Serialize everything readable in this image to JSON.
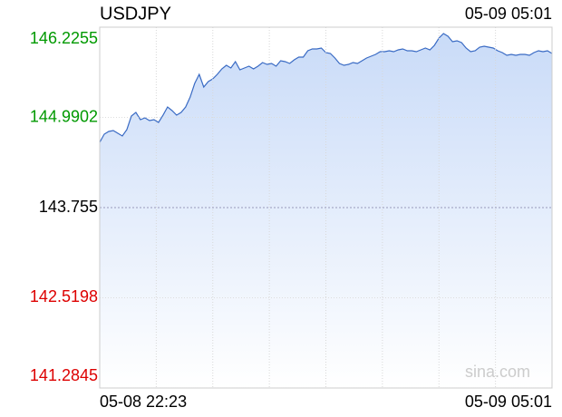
{
  "chart_data": {
    "type": "line",
    "title": "USDJPY",
    "time": "05-09 05:01",
    "watermark": "sina.com",
    "categories": [
      "05-08 22:23",
      null,
      null,
      null,
      null,
      null,
      null,
      null,
      null,
      null,
      null,
      null,
      null,
      null,
      null,
      null,
      null,
      null,
      null,
      null,
      null,
      null,
      null,
      null,
      null,
      null,
      null,
      null,
      null,
      null,
      null,
      null,
      null,
      null,
      null,
      null,
      null,
      null,
      null,
      null,
      null,
      null,
      null,
      null,
      null,
      null,
      null,
      null,
      null,
      null,
      null,
      null,
      null,
      null,
      null,
      null,
      null,
      null,
      null,
      null,
      null,
      null,
      null,
      null,
      null,
      null,
      null,
      null,
      null,
      null,
      null,
      null,
      null,
      null,
      null,
      null,
      null,
      null,
      null,
      null,
      null,
      null,
      null,
      null,
      null,
      null,
      null,
      null,
      null,
      null,
      null,
      null,
      null,
      null,
      null,
      null,
      null,
      null,
      null,
      null,
      "05-09 05:01"
    ],
    "series": [
      {
        "name": "USDJPY",
        "color": "#3a6bc4",
        "values": [
          144.6488,
          144.7605,
          144.7978,
          144.8102,
          144.7729,
          144.7357,
          144.8226,
          145.0088,
          145.0585,
          144.9592,
          144.984,
          144.9468,
          144.9592,
          144.9219,
          145.0212,
          145.133,
          145.0833,
          145.0212,
          145.0585,
          145.133,
          145.2695,
          145.4558,
          145.5799,
          145.4061,
          145.4806,
          145.5178,
          145.5799,
          145.6544,
          145.7041,
          145.6668,
          145.7537,
          145.642,
          145.6668,
          145.6917,
          145.6544,
          145.6917,
          145.7413,
          145.7165,
          145.7289,
          145.6917,
          145.7661,
          145.7537,
          145.7289,
          145.7786,
          145.8158,
          145.8158,
          145.9027,
          145.9275,
          145.9275,
          145.94,
          145.8779,
          145.8655,
          145.8034,
          145.7289,
          145.7041,
          145.7165,
          145.7413,
          145.7289,
          145.7661,
          145.8034,
          145.8282,
          145.853,
          145.8903,
          145.8903,
          145.9027,
          145.8903,
          145.9151,
          145.9275,
          145.9027,
          145.9027,
          145.8903,
          145.9151,
          145.94,
          145.9151,
          145.9772,
          146.0765,
          146.1386,
          146.1013,
          146.0269,
          146.0393,
          146.0144,
          145.94,
          145.8903,
          145.9027,
          145.9524,
          145.9648,
          145.9524,
          145.94,
          145.9027,
          145.8779,
          145.8406,
          145.853,
          145.8406,
          145.853,
          145.853,
          145.8406,
          145.8779,
          145.9027,
          145.8903,
          145.9027,
          145.8655
        ]
      }
    ],
    "ylim": [
      141.2845,
      146.2255
    ],
    "yticks": [
      146.2255,
      144.9902,
      143.755,
      142.5198,
      141.2845
    ],
    "ytick_colors": [
      "#009900",
      "#009900",
      "#000000",
      "#dd0000",
      "#dd0000"
    ],
    "grid": true
  }
}
